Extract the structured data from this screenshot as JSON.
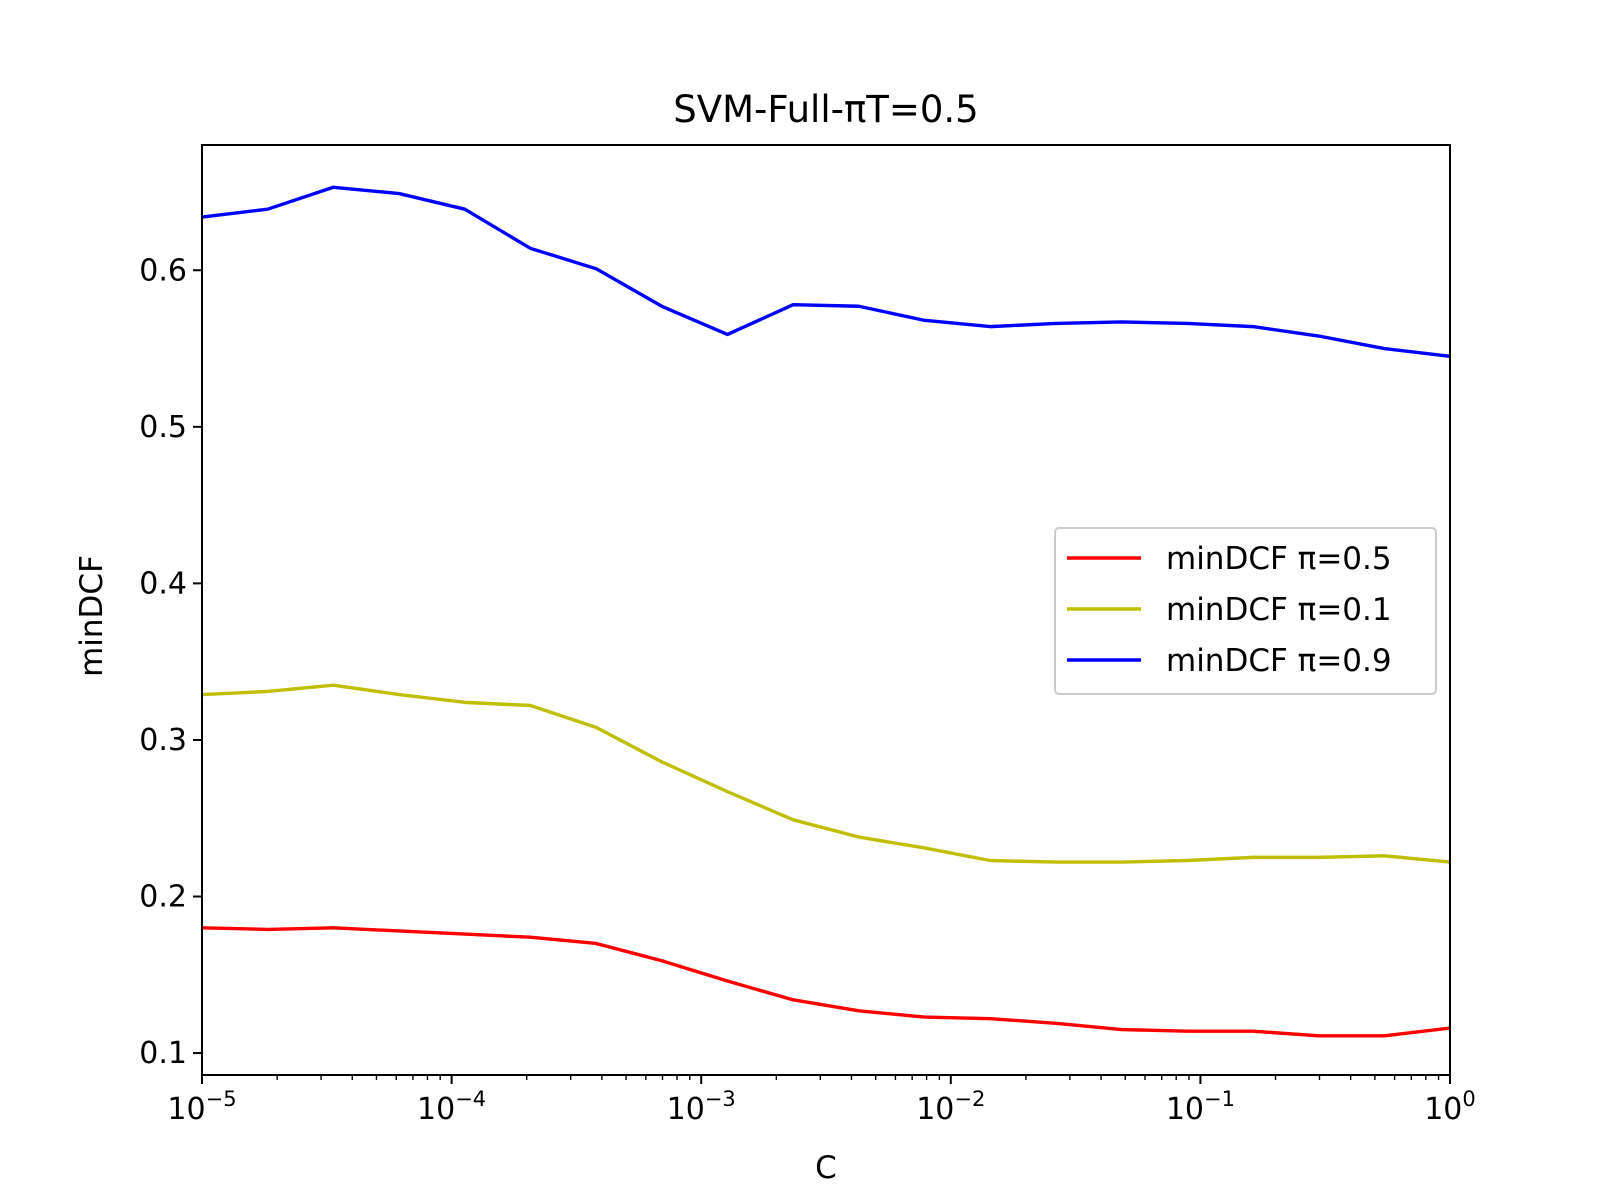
{
  "chart_data": {
    "type": "line",
    "title": "SVM-Full-πT=0.5",
    "xlabel": "C",
    "ylabel": "minDCF",
    "x_scale": "log",
    "xlim": [
      1e-05,
      1
    ],
    "ylim": [
      0.086,
      0.68
    ],
    "grid": false,
    "legend_position": "center-right",
    "x_ticks": [
      {
        "value": 1e-05,
        "base": "10",
        "exp": "−5"
      },
      {
        "value": 0.0001,
        "base": "10",
        "exp": "−4"
      },
      {
        "value": 0.001,
        "base": "10",
        "exp": "−3"
      },
      {
        "value": 0.01,
        "base": "10",
        "exp": "−2"
      },
      {
        "value": 0.1,
        "base": "10",
        "exp": "−1"
      },
      {
        "value": 1,
        "base": "10",
        "exp": "0"
      }
    ],
    "y_ticks": [
      {
        "value": 0.1,
        "label": "0.1"
      },
      {
        "value": 0.2,
        "label": "0.2"
      },
      {
        "value": 0.3,
        "label": "0.3"
      },
      {
        "value": 0.4,
        "label": "0.4"
      },
      {
        "value": 0.5,
        "label": "0.5"
      },
      {
        "value": 0.6,
        "label": "0.6"
      }
    ],
    "x": [
      1e-05,
      1.833e-05,
      3.36e-05,
      6.158e-05,
      0.0001129,
      0.0002069,
      0.0003793,
      0.0006952,
      0.001274,
      0.002336,
      0.004281,
      0.007848,
      0.01438,
      0.02637,
      0.04833,
      0.08859,
      0.1624,
      0.2976,
      0.5456,
      1.0
    ],
    "series": [
      {
        "name": "minDCF π=0.5",
        "color": "#ff0000",
        "values": [
          0.18,
          0.179,
          0.18,
          0.178,
          0.176,
          0.174,
          0.17,
          0.159,
          0.146,
          0.134,
          0.127,
          0.123,
          0.122,
          0.119,
          0.115,
          0.114,
          0.114,
          0.111,
          0.111,
          0.116
        ]
      },
      {
        "name": "minDCF π=0.1",
        "color": "#bfbf00",
        "values": [
          0.329,
          0.331,
          0.335,
          0.329,
          0.324,
          0.322,
          0.308,
          0.286,
          0.267,
          0.249,
          0.238,
          0.231,
          0.223,
          0.222,
          0.222,
          0.223,
          0.225,
          0.225,
          0.226,
          0.222
        ]
      },
      {
        "name": "minDCF π=0.9",
        "color": "#0000ff",
        "values": [
          0.634,
          0.639,
          0.653,
          0.649,
          0.639,
          0.614,
          0.601,
          0.577,
          0.559,
          0.578,
          0.577,
          0.568,
          0.564,
          0.566,
          0.567,
          0.566,
          0.564,
          0.558,
          0.55,
          0.545
        ]
      }
    ]
  }
}
